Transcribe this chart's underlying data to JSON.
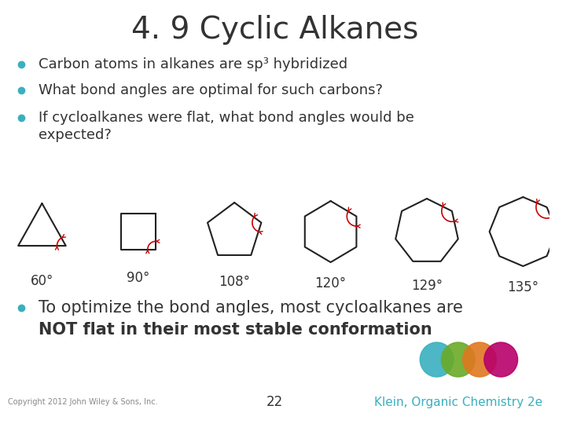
{
  "title": "4. 9 Cyclic Alkanes",
  "title_fontsize": 28,
  "bullet_color": "#3ab0bf",
  "bullet_points": [
    "Carbon atoms in alkanes are sp³ hybridized",
    "What bond angles are optimal for such carbons?",
    "If cycloalkanes were flat, what bond angles would be\nexpected?"
  ],
  "bottom_bullet_line1": "To optimize the bond angles, most cycloalkanes are",
  "bottom_bullet_line2": "NOT flat in their most stable conformation",
  "polygon_sides": [
    3,
    4,
    5,
    6,
    7,
    8
  ],
  "polygon_angles": [
    "60°",
    "90°",
    "108°",
    "120°",
    "129°",
    "135°"
  ],
  "polygon_color": "#222222",
  "arrow_color": "#cc0000",
  "footer_left": "Copyright 2012 John Wiley & Sons, Inc.",
  "footer_center": "22",
  "footer_right": "Klein, Organic Chemistry 2e",
  "footer_right_color": "#3ab0bf",
  "circle_colors": [
    "#3ab0bf",
    "#6aaa28",
    "#e07820",
    "#b8006a"
  ],
  "bg_color": "#ffffff",
  "text_color": "#333333"
}
